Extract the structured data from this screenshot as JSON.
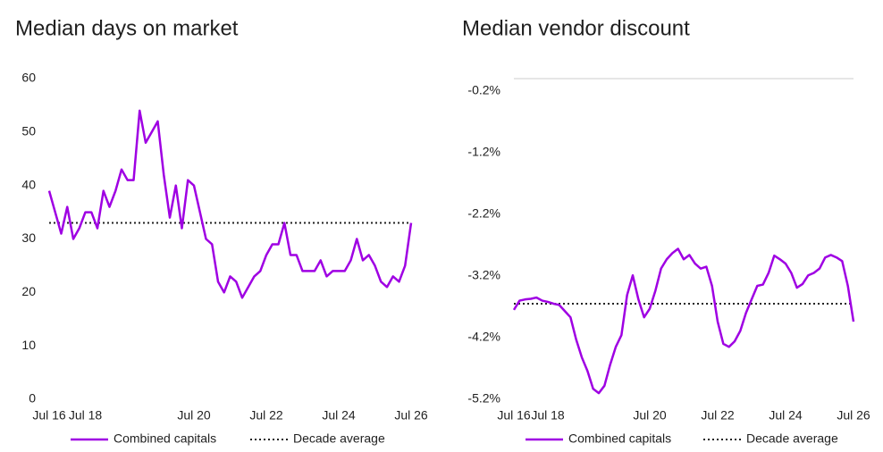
{
  "chart_data": [
    {
      "type": "line",
      "title": "Median days on market",
      "categories": [
        "Jul 16",
        null,
        null,
        null,
        null,
        null,
        "Jul 18",
        null,
        null,
        null,
        null,
        null,
        null,
        null,
        null,
        null,
        null,
        null,
        null,
        null,
        null,
        null,
        null,
        null,
        "Jul 20",
        null,
        null,
        null,
        null,
        null,
        null,
        null,
        null,
        null,
        null,
        null,
        "Jul 22",
        null,
        null,
        null,
        null,
        null,
        null,
        null,
        null,
        null,
        null,
        null,
        "Jul 24",
        null,
        null,
        null,
        null,
        null,
        null,
        null,
        null,
        null,
        null,
        null,
        "Jul 26"
      ],
      "series": [
        {
          "name": "Combined capitals",
          "color": "#9f00e3",
          "values": [
            39,
            35,
            31,
            36,
            30,
            32,
            35,
            35,
            32,
            39,
            36,
            39,
            43,
            41,
            41,
            54,
            48,
            50,
            52,
            42,
            34,
            40,
            32,
            41,
            40,
            35,
            30,
            29,
            22,
            20,
            23,
            22,
            19,
            21,
            23,
            24,
            27,
            29,
            29,
            33,
            27,
            27,
            24,
            24,
            24,
            26,
            23,
            24,
            24,
            24,
            26,
            30,
            26,
            27,
            25,
            22,
            21,
            23,
            22,
            25,
            33
          ]
        }
      ],
      "reference_line": {
        "name": "Decade average",
        "value": 33,
        "color": "#222222",
        "style": "dotted"
      },
      "ylim": [
        0,
        60
      ],
      "yticks": [
        0,
        10,
        20,
        30,
        40,
        50,
        60
      ],
      "grid": false,
      "top_border": false
    },
    {
      "type": "line",
      "title": "Median vendor discount",
      "categories": [
        "Jul 16",
        null,
        null,
        null,
        null,
        null,
        "Jul 18",
        null,
        null,
        null,
        null,
        null,
        null,
        null,
        null,
        null,
        null,
        null,
        null,
        null,
        null,
        null,
        null,
        null,
        "Jul 20",
        null,
        null,
        null,
        null,
        null,
        null,
        null,
        null,
        null,
        null,
        null,
        "Jul 22",
        null,
        null,
        null,
        null,
        null,
        null,
        null,
        null,
        null,
        null,
        null,
        "Jul 24",
        null,
        null,
        null,
        null,
        null,
        null,
        null,
        null,
        null,
        null,
        null,
        "Jul 26"
      ],
      "series": [
        {
          "name": "Combined capitals",
          "color": "#9f00e3",
          "values": [
            -3.75,
            -3.6,
            -3.58,
            -3.57,
            -3.55,
            -3.6,
            -3.62,
            -3.65,
            -3.67,
            -3.77,
            -3.87,
            -4.23,
            -4.52,
            -4.74,
            -5.03,
            -5.1,
            -4.98,
            -4.64,
            -4.35,
            -4.16,
            -3.51,
            -3.19,
            -3.58,
            -3.87,
            -3.73,
            -3.44,
            -3.08,
            -2.93,
            -2.83,
            -2.76,
            -2.93,
            -2.86,
            -3.0,
            -3.08,
            -3.05,
            -3.36,
            -3.94,
            -4.3,
            -4.35,
            -4.26,
            -4.09,
            -3.8,
            -3.58,
            -3.36,
            -3.34,
            -3.15,
            -2.87,
            -2.93,
            -3.0,
            -3.15,
            -3.39,
            -3.33,
            -3.19,
            -3.15,
            -3.08,
            -2.9,
            -2.86,
            -2.9,
            -2.96,
            -3.36,
            -3.94
          ]
        }
      ],
      "reference_line": {
        "name": "Decade average",
        "value": -3.65,
        "color": "#222222",
        "style": "dotted"
      },
      "ylim": [
        -5.2,
        0
      ],
      "yticks": [
        {
          "value": -5.2,
          "label": "-5.2%"
        },
        {
          "value": -4.2,
          "label": "-4.2%"
        },
        {
          "value": -3.2,
          "label": "-3.2%"
        },
        {
          "value": -2.2,
          "label": "-2.2%"
        },
        {
          "value": -1.2,
          "label": "-1.2%"
        },
        {
          "value": -0.2,
          "label": "-0.2%"
        }
      ],
      "grid": false,
      "top_border": true
    }
  ]
}
